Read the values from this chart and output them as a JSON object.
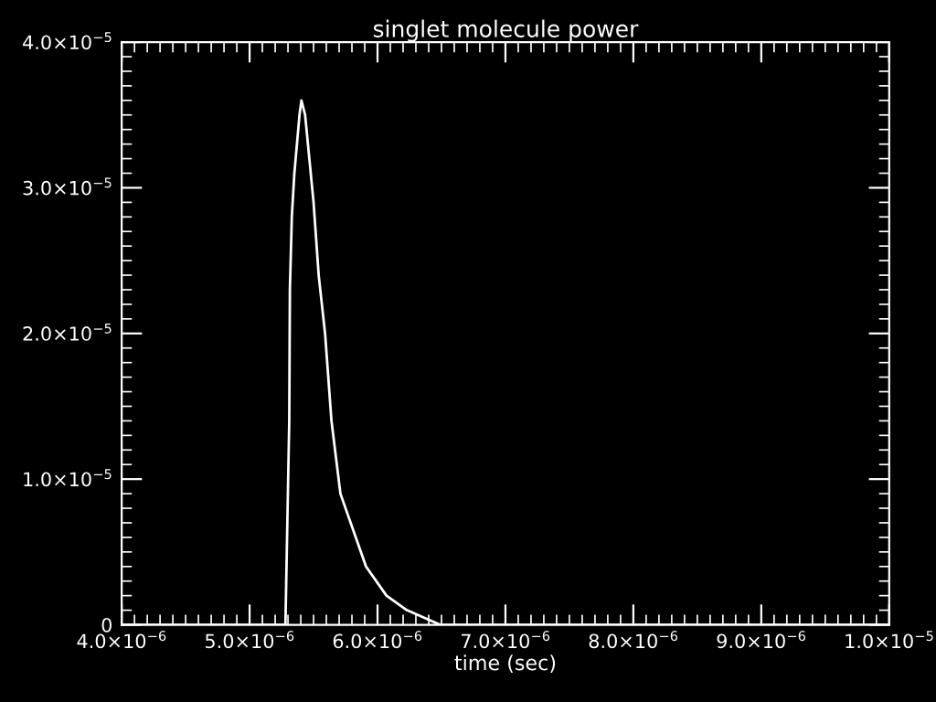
{
  "chart_data": {
    "type": "line",
    "title": "singlet molecule power",
    "xlabel": "time (sec)",
    "x": [
      4e-06,
      5.21e-06,
      5.28e-06,
      5.31e-06,
      5.315e-06,
      5.33e-06,
      5.35e-06,
      5.39e-06,
      5.405e-06,
      5.434e-06,
      5.5e-06,
      5.54e-06,
      5.59e-06,
      5.64e-06,
      5.71e-06,
      5.91e-06,
      6.07e-06,
      6.23e-06,
      6.49e-06,
      6.75e-06,
      6.96e-06,
      1e-05
    ],
    "series": [
      {
        "color": "#ffffff",
        "values": [
          0,
          0,
          0,
          1.4e-05,
          2.3e-05,
          2.8e-05,
          3.1e-05,
          3.5e-05,
          3.6e-05,
          3.5e-05,
          2.9e-05,
          2.4e-05,
          2e-05,
          1.4e-05,
          9e-06,
          4e-06,
          2e-06,
          1e-06,
          0,
          0,
          0,
          0
        ]
      }
    ],
    "xlim": [
      4e-06,
      1e-05
    ],
    "ylim": [
      0,
      4e-05
    ],
    "xticks": [
      {
        "value": 4e-06,
        "label": "4.0×10$^{−6}$"
      },
      {
        "value": 5e-06,
        "label": "5.0×10$^{−6}$"
      },
      {
        "value": 6e-06,
        "label": "6.0×10$^{−6}$"
      },
      {
        "value": 7e-06,
        "label": "7.0×10$^{−6}$"
      },
      {
        "value": 8e-06,
        "label": "8.0×10$^{−6}$"
      },
      {
        "value": 9e-06,
        "label": "9.0×10$^{−6}$"
      },
      {
        "value": 1e-05,
        "label": "1.0×10$^{−5}$"
      }
    ],
    "yticks": [
      0,
      {
        "value": 1e-05,
        "label": "1.0×10$^{−5}$"
      },
      {
        "value": 2e-05,
        "label": "2.0×10$^{−5}$"
      },
      {
        "value": 3e-05,
        "label": "3.0×10$^{−5}$"
      },
      {
        "value": 4e-05,
        "label": "4.0×10$^{−5}$"
      }
    ],
    "grid": false,
    "legend": false,
    "marker": "none",
    "line_style": "solid"
  }
}
